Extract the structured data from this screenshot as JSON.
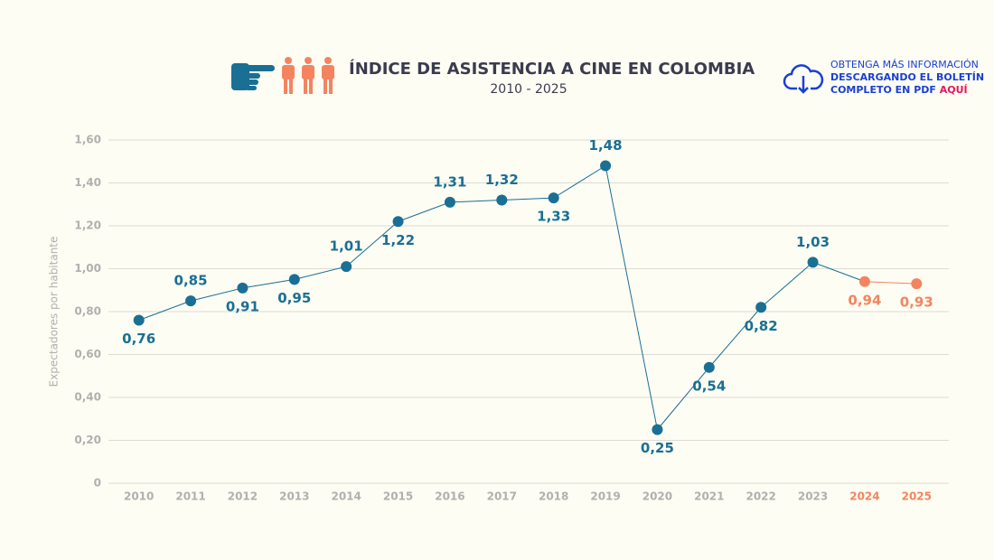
{
  "chart_data": {
    "type": "line",
    "title": "ÍNDICE DE ASISTENCIA A CINE EN COLOMBIA",
    "subtitle": "2010 - 2025",
    "y_label": "Expectadores por habitante",
    "categories": [
      "2010",
      "2011",
      "2012",
      "2013",
      "2014",
      "2015",
      "2016",
      "2017",
      "2018",
      "2019",
      "2020",
      "2021",
      "2022",
      "2023",
      "2024",
      "2025"
    ],
    "values": [
      0.76,
      0.85,
      0.91,
      0.95,
      1.01,
      1.22,
      1.31,
      1.32,
      1.33,
      1.48,
      0.25,
      0.54,
      0.82,
      1.03,
      0.94,
      0.93
    ],
    "value_labels": [
      "0,76",
      "0,85",
      "0,91",
      "0,95",
      "1,01",
      "1,22",
      "1,31",
      "1,32",
      "1,33",
      "1,48",
      "0,25",
      "0,54",
      "0,82",
      "1,03",
      "0,94",
      "0,93"
    ],
    "point_colors": [
      "#1a6f94",
      "#1a6f94",
      "#1a6f94",
      "#1a6f94",
      "#1a6f94",
      "#1a6f94",
      "#1a6f94",
      "#1a6f94",
      "#1a6f94",
      "#1a6f94",
      "#1a6f94",
      "#1a6f94",
      "#1a6f94",
      "#1a6f94",
      "#f4845f",
      "#f4845f"
    ],
    "ylim": [
      0,
      1.6
    ],
    "yticks": [
      0,
      {
        "value": 0.2,
        "label": "0,20"
      },
      {
        "value": 0.4,
        "label": "0,40"
      },
      {
        "value": 0.6,
        "label": "0,60"
      },
      {
        "value": 0.8,
        "label": "0,80"
      },
      {
        "value": 1.0,
        "label": "1,00"
      },
      {
        "value": 1.2,
        "label": "1,20"
      },
      {
        "value": 1.4,
        "label": "1,40"
      },
      {
        "value": 1.6,
        "label": "1,60"
      }
    ],
    "grid": true
  },
  "download_note": {
    "lines": [
      "OBTENGA MÁS INFORMACIÓN",
      "DESCARGANDO EL BOLETÍN",
      "COMPLETO EN PDF"
    ],
    "link": "AQUÍ"
  }
}
